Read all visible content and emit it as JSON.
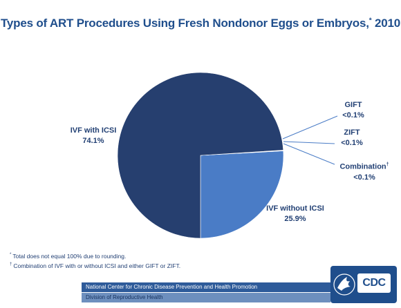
{
  "title": "Types of ART Procedures Using Fresh Nondonor Eggs or Embryos,",
  "title_mark": "*",
  "title_year": "2010",
  "chart_data": {
    "type": "pie",
    "unit": "%",
    "slices": [
      {
        "name": "IVF with ICSI",
        "value": 74.1,
        "label": "74.1%",
        "color": "#263f6f"
      },
      {
        "name": "IVF without ICSI",
        "value": 25.9,
        "label": "25.9%",
        "color": "#4a7cc6"
      },
      {
        "name": "Combination",
        "name_mark": "†",
        "value": 0.05,
        "label": "<0.1%",
        "color": "#6f95d0"
      },
      {
        "name": "ZIFT",
        "value": 0.05,
        "label": "<0.1%",
        "color": "#8fb0e0"
      },
      {
        "name": "GIFT",
        "value": 0.05,
        "label": "<0.1%",
        "color": "#b4cbee"
      }
    ]
  },
  "footnotes": [
    {
      "mark": "*",
      "text": "Total does not equal 100% due to rounding."
    },
    {
      "mark": "†",
      "text": "Combination of IVF with or without ICSI and either GIFT or ZIFT."
    }
  ],
  "banner": {
    "line1": "National Center for Chronic Disease Prevention and Health Promotion",
    "line2": "Division of Reproductive Health"
  },
  "logo": {
    "text": "CDC",
    "icon": "hhs-eagle-icon"
  }
}
